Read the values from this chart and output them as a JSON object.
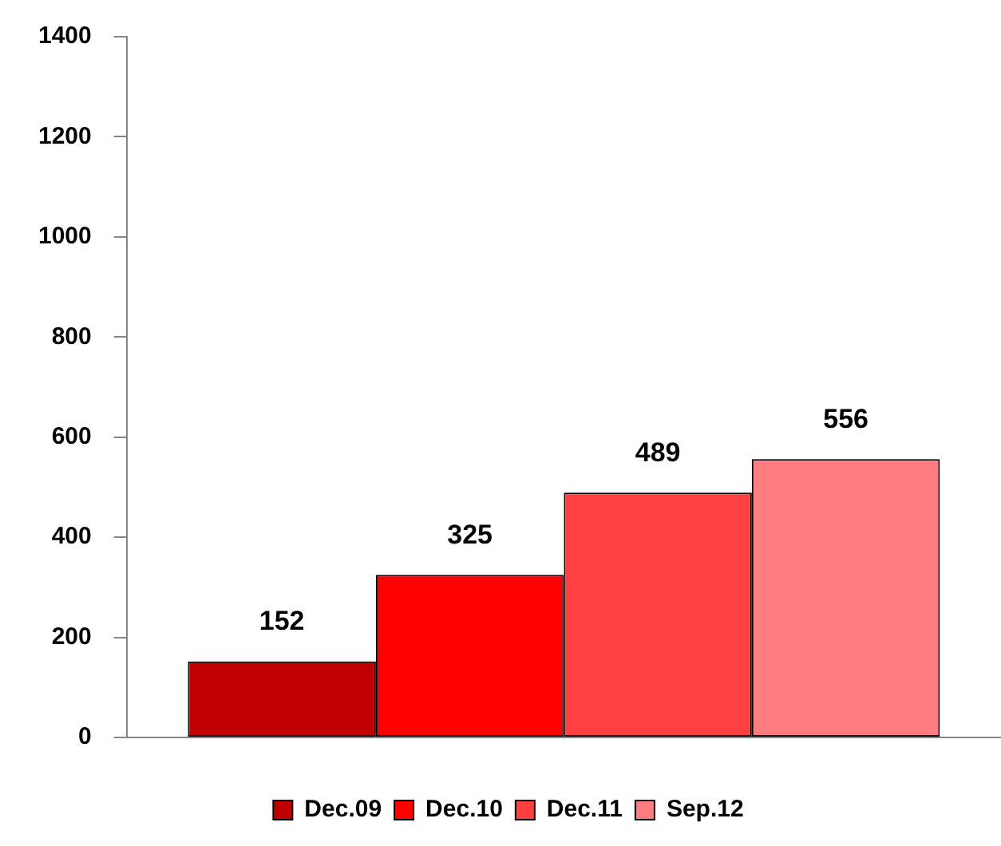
{
  "chart_data": {
    "type": "bar",
    "categories": [
      null
    ],
    "series": [
      {
        "name": "Dec.09",
        "color": "#c00000",
        "values": [
          152
        ]
      },
      {
        "name": "Dec.10",
        "color": "#ff0000",
        "values": [
          325
        ]
      },
      {
        "name": "Dec.11",
        "color": "#ff4040",
        "values": [
          489
        ]
      },
      {
        "name": "Sep.12",
        "color": "#ff7c80",
        "values": [
          556
        ]
      }
    ],
    "ylim": [
      0,
      1400
    ],
    "yticks": [
      0,
      200,
      400,
      600,
      800,
      1000,
      1200,
      1400
    ],
    "data_labels": true,
    "legend": "bottom",
    "grid": false
  }
}
